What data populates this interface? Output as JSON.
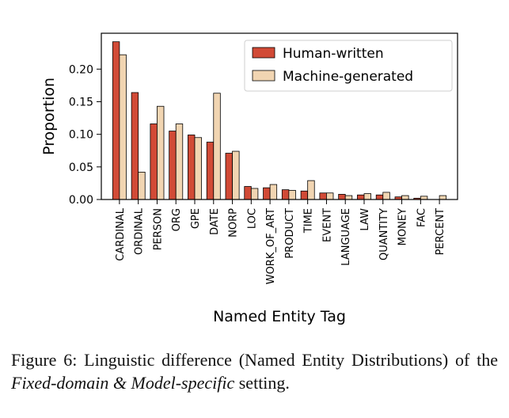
{
  "chart_data": {
    "type": "bar",
    "categories": [
      "CARDINAL",
      "ORDINAL",
      "PERSON",
      "ORG",
      "GPE",
      "DATE",
      "NORP",
      "LOC",
      "WORK_OF_ART",
      "PRODUCT",
      "TIME",
      "EVENT",
      "LANGUAGE",
      "LAW",
      "QUANTITY",
      "MONEY",
      "FAC",
      "PERCENT"
    ],
    "series": [
      {
        "name": "Human-written",
        "color": "#d14a36",
        "values": [
          0.242,
          0.164,
          0.116,
          0.105,
          0.099,
          0.088,
          0.071,
          0.02,
          0.018,
          0.015,
          0.013,
          0.01,
          0.008,
          0.007,
          0.007,
          0.004,
          0.002,
          0.0
        ]
      },
      {
        "name": "Machine-generated",
        "color": "#f1d5b2",
        "values": [
          0.222,
          0.042,
          0.143,
          0.116,
          0.095,
          0.163,
          0.074,
          0.017,
          0.023,
          0.014,
          0.029,
          0.01,
          0.006,
          0.009,
          0.011,
          0.006,
          0.005,
          0.006
        ]
      }
    ],
    "xlabel": "Named Entity Tag",
    "ylabel": "Proportion",
    "ylim": [
      0,
      0.255
    ],
    "yticks": [
      0.0,
      0.05,
      0.1,
      0.15,
      0.2
    ],
    "ytick_labels": [
      "0.00",
      "0.05",
      "0.10",
      "0.15",
      "0.20"
    ],
    "legend_position": "top-right",
    "grid": false
  },
  "caption": {
    "prefix": "Figure 6: Linguistic difference (Named Entity Distributions) of the ",
    "emphasis": "Fixed-domain & Model-specific",
    "suffix": " setting."
  }
}
